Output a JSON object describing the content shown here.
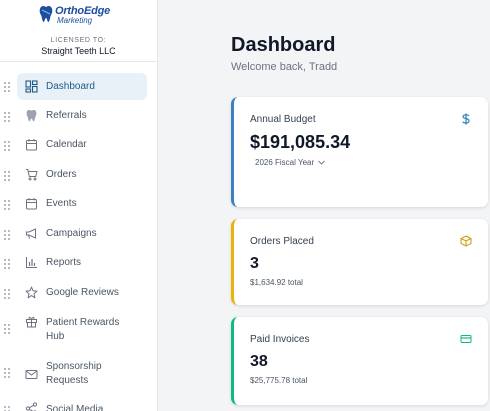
{
  "brand": {
    "logo_line1": "OrthoEdge",
    "logo_line2": "Marketing",
    "licensed_to_label": "LICENSED TO:",
    "licensee": "Straight Teeth LLC"
  },
  "nav": {
    "items": [
      {
        "label": "Dashboard",
        "icon": "dashboard-grid-icon",
        "active": true
      },
      {
        "label": "Referrals",
        "icon": "tooth-icon"
      },
      {
        "label": "Calendar",
        "icon": "calendar-icon"
      },
      {
        "label": "Orders",
        "icon": "cart-icon"
      },
      {
        "label": "Events",
        "icon": "calendar-icon"
      },
      {
        "label": "Campaigns",
        "icon": "megaphone-icon"
      },
      {
        "label": "Reports",
        "icon": "bar-chart-icon"
      },
      {
        "label": "Google Reviews",
        "icon": "star-icon"
      },
      {
        "label": "Patient Rewards Hub",
        "label_line1": "Patient Rewards",
        "label_line2": "Hub",
        "icon": "gift-icon"
      },
      {
        "label": "Sponsorship Requests",
        "label_line1": "Sponsorship",
        "label_line2": "Requests",
        "icon": "mail-icon"
      },
      {
        "label": "Social Media",
        "icon": "share-icon"
      }
    ]
  },
  "main": {
    "title": "Dashboard",
    "welcome": "Welcome back, Tradd"
  },
  "cards": {
    "budget": {
      "label": "Annual Budget",
      "value": "$191,085.34",
      "selector": "2026 Fiscal Year",
      "icon": "dollar-icon",
      "accent": "#3b82c4"
    },
    "orders": {
      "label": "Orders Placed",
      "value": "3",
      "sub": "$1,634.92 total",
      "icon": "box-icon",
      "accent": "#eab308"
    },
    "invoices": {
      "label": "Paid Invoices",
      "value": "38",
      "sub": "$25,775.78 total",
      "icon": "credit-card-icon",
      "accent": "#10b981"
    }
  }
}
